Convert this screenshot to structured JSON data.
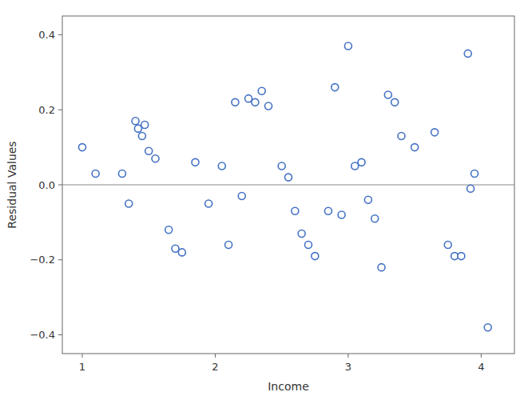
{
  "chart_data": {
    "type": "scatter",
    "xlabel": "Income",
    "ylabel": "Residual Values",
    "x": [
      1.0,
      1.1,
      1.3,
      1.35,
      1.4,
      1.42,
      1.45,
      1.47,
      1.5,
      1.55,
      1.65,
      1.7,
      1.75,
      1.85,
      1.95,
      2.05,
      2.1,
      2.15,
      2.2,
      2.25,
      2.3,
      2.35,
      2.4,
      2.5,
      2.55,
      2.6,
      2.65,
      2.7,
      2.75,
      2.85,
      2.9,
      2.95,
      3.0,
      3.05,
      3.1,
      3.15,
      3.2,
      3.25,
      3.3,
      3.35,
      3.4,
      3.5,
      3.65,
      3.75,
      3.8,
      3.85,
      3.9,
      3.92,
      3.95,
      4.05
    ],
    "values": [
      0.1,
      0.03,
      0.03,
      -0.05,
      0.17,
      0.15,
      0.13,
      0.16,
      0.09,
      0.07,
      -0.12,
      -0.17,
      -0.18,
      0.06,
      -0.05,
      0.05,
      -0.16,
      0.22,
      -0.03,
      0.23,
      0.22,
      0.25,
      0.21,
      0.05,
      0.02,
      -0.07,
      -0.13,
      -0.16,
      -0.19,
      -0.07,
      0.26,
      -0.08,
      0.37,
      0.05,
      0.06,
      -0.04,
      -0.09,
      -0.22,
      0.24,
      0.22,
      0.13,
      0.1,
      0.14,
      -0.16,
      -0.19,
      -0.19,
      0.35,
      -0.01,
      0.03,
      -0.38
    ],
    "color": "#4472C4",
    "marker": "circle-open",
    "hline": 0.0,
    "xlim": [
      0.85,
      4.25
    ],
    "xticks": [
      1,
      2,
      3,
      4
    ],
    "ylim": [
      -0.45,
      0.45
    ],
    "yticks": [
      {
        "value": -0.4,
        "label": "−0.4"
      },
      {
        "value": -0.2,
        "label": "−0.2"
      },
      {
        "value": 0.0,
        "label": "0.0"
      },
      {
        "value": 0.2,
        "label": "0.2"
      },
      {
        "value": 0.4,
        "label": "0.4"
      }
    ],
    "grid": false
  }
}
